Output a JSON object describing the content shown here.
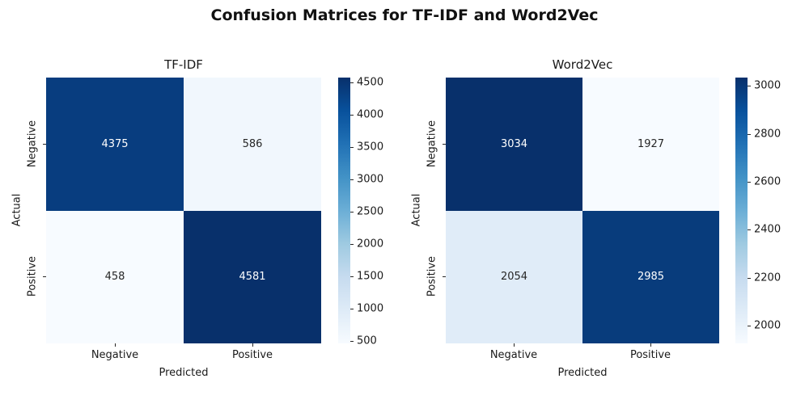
{
  "suptitle": "Confusion Matrices for TF-IDF and Word2Vec",
  "colormap": {
    "name": "Blues",
    "stops": [
      "#f7fbff",
      "#deebf7",
      "#c6dbef",
      "#9ecae1",
      "#6baed6",
      "#4292c6",
      "#2171b5",
      "#08519c",
      "#08306b"
    ]
  },
  "annotation_text_colors": {
    "on_dark": "#ffffff",
    "on_light": "#262626"
  },
  "chart_data": [
    {
      "type": "heatmap",
      "title": "TF-IDF",
      "xlabel": "Predicted",
      "ylabel": "Actual",
      "x_categories": [
        "Negative",
        "Positive"
      ],
      "y_categories": [
        "Negative",
        "Positive"
      ],
      "values": [
        [
          4375,
          586
        ],
        [
          458,
          4581
        ]
      ],
      "vmin": 458,
      "vmax": 4581,
      "colorbar_ticks": [
        500,
        1000,
        1500,
        2000,
        2500,
        3000,
        3500,
        4000,
        4500
      ],
      "legend_position": "right-colorbar",
      "grid": false
    },
    {
      "type": "heatmap",
      "title": "Word2Vec",
      "xlabel": "Predicted",
      "ylabel": "Actual",
      "x_categories": [
        "Negative",
        "Positive"
      ],
      "y_categories": [
        "Negative",
        "Positive"
      ],
      "values": [
        [
          3034,
          1927
        ],
        [
          2054,
          2985
        ]
      ],
      "vmin": 1927,
      "vmax": 3034,
      "colorbar_ticks": [
        2000,
        2200,
        2400,
        2600,
        2800,
        3000
      ],
      "legend_position": "right-colorbar",
      "grid": false
    }
  ]
}
